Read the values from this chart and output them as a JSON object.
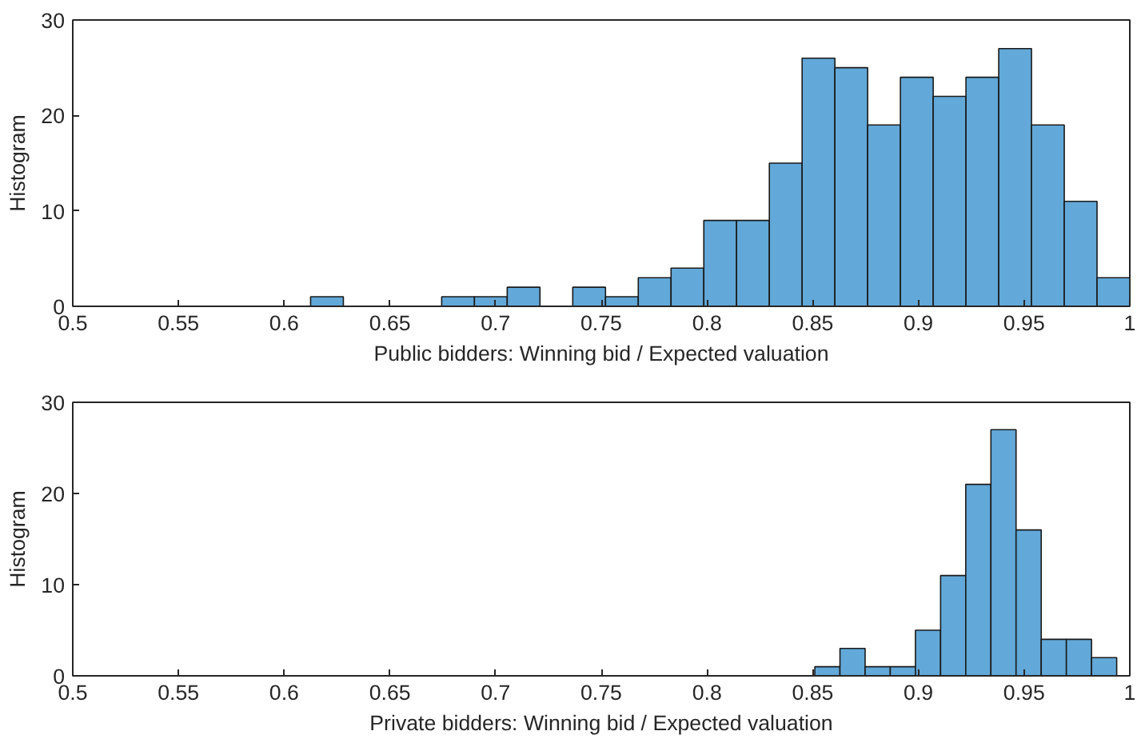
{
  "chart_data": [
    {
      "type": "histogram",
      "xlabel": "Public bidders: Winning bid / Expected valuation",
      "ylabel": "Histogram",
      "bins": [
        0.6125,
        0.628,
        0.6435,
        0.659,
        0.6745,
        0.69,
        0.7055,
        0.721,
        0.7365,
        0.752,
        0.7675,
        0.783,
        0.7985,
        0.814,
        0.8295,
        0.845,
        0.8605,
        0.876,
        0.8915,
        0.907,
        0.9225,
        0.938,
        0.9535,
        0.969,
        0.9845,
        1.0
      ],
      "values": [
        1,
        0,
        0,
        0,
        1,
        1,
        2,
        0,
        2,
        1,
        3,
        4,
        9,
        9,
        15,
        26,
        25,
        19,
        24,
        22,
        24,
        27,
        19,
        11,
        3
      ],
      "color": "#62a8d8",
      "xlim": [
        0.5,
        1
      ],
      "ylim": [
        0,
        30
      ],
      "xticks": [
        {
          "value": 0.5,
          "label": "0.5"
        },
        0.55,
        {
          "value": 0.6,
          "label": "0.6"
        },
        0.65,
        {
          "value": 0.7,
          "label": "0.7"
        },
        0.75,
        {
          "value": 0.8,
          "label": "0.8"
        },
        0.85,
        {
          "value": 0.9,
          "label": "0.9"
        },
        0.95,
        1
      ],
      "yticks": [
        0,
        10,
        20,
        30
      ],
      "grid": false
    },
    {
      "type": "histogram",
      "xlabel": "Private bidders: Winning bid / Expected valuation",
      "ylabel": "Histogram",
      "bins": [
        0.851,
        0.8629,
        0.8748,
        0.8867,
        0.8986,
        0.9105,
        0.9224,
        0.9343,
        0.9462,
        0.9581,
        0.97,
        0.9819,
        0.9938
      ],
      "values": [
        1,
        3,
        1,
        1,
        5,
        11,
        21,
        27,
        16,
        4,
        4,
        2
      ],
      "color": "#62a8d8",
      "xlim": [
        0.5,
        1
      ],
      "ylim": [
        0,
        30
      ],
      "xticks": [
        {
          "value": 0.5,
          "label": "0.5"
        },
        0.55,
        {
          "value": 0.6,
          "label": "0.6"
        },
        0.65,
        {
          "value": 0.7,
          "label": "0.7"
        },
        0.75,
        {
          "value": 0.8,
          "label": "0.8"
        },
        0.85,
        {
          "value": 0.9,
          "label": "0.9"
        },
        0.95,
        1
      ],
      "yticks": [
        0,
        10,
        20,
        30
      ],
      "grid": false
    }
  ]
}
